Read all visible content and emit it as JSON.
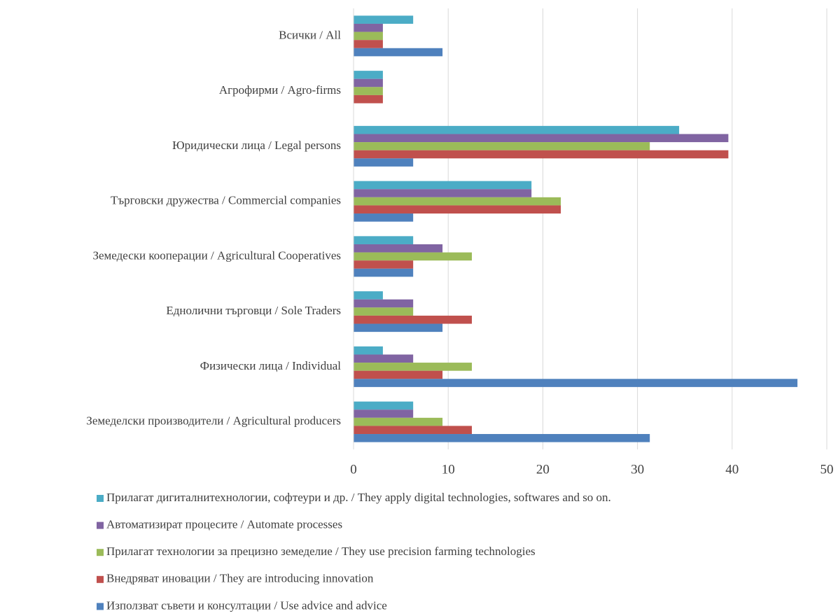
{
  "chart_data": {
    "type": "hbar",
    "categories": [
      "Всички / All",
      "Агрофирми / Agro-firms",
      "Юридически лица / Legal persons",
      "Търговски дружества / Commercial companies",
      "Земедески кооперации / Agricultural Cooperatives",
      "Еднолични търговци / Sole Traders",
      "Физически лица / Individual",
      "Земеделски производители / Agricultural producers"
    ],
    "series": [
      {
        "name": "Прилагат дигиталнитехнологии, софтеури и др. / They apply digital technologies, softwares and so on.",
        "color": "#4bacc6",
        "values": [
          6.3,
          3.1,
          34.4,
          18.8,
          6.3,
          3.1,
          3.1,
          6.3
        ]
      },
      {
        "name": "Автоматизират процесите / Automate processes",
        "color": "#8064a2",
        "values": [
          3.1,
          3.1,
          39.6,
          18.8,
          9.4,
          6.3,
          6.3,
          6.3
        ]
      },
      {
        "name": "Прилагат технологии за прецизно земеделие / They use precision farming technologies",
        "color": "#9bbb59",
        "values": [
          3.1,
          3.1,
          31.3,
          21.9,
          12.5,
          6.3,
          12.5,
          9.4
        ]
      },
      {
        "name": "Внедряват иновации / They are introducing innovation",
        "color": "#c0504d",
        "values": [
          3.1,
          3.1,
          39.6,
          21.9,
          6.3,
          12.5,
          9.4,
          12.5
        ]
      },
      {
        "name": "Използват съвети и консултации / Use advice and advice",
        "color": "#4f81bd",
        "values": [
          9.4,
          0,
          6.3,
          6.3,
          6.3,
          9.4,
          46.9,
          31.3
        ]
      }
    ],
    "xlim": [
      0,
      50
    ],
    "xticks": [
      0,
      10,
      20,
      30,
      40,
      50
    ],
    "grid": true
  }
}
